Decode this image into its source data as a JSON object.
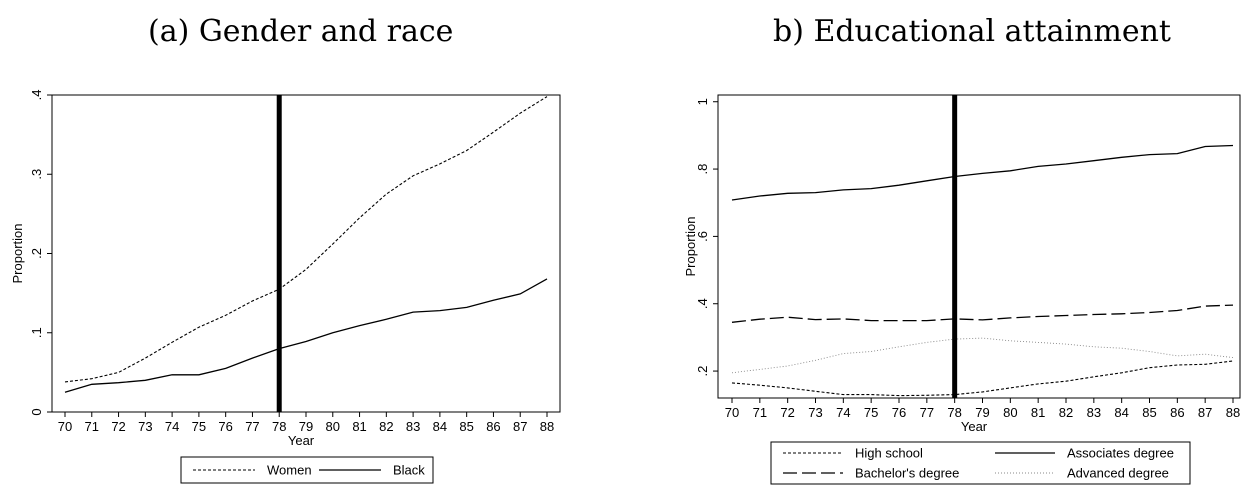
{
  "chart_data": [
    {
      "type": "line",
      "title": "(a) Gender and race",
      "xlabel": "Year",
      "ylabel": "Proportion",
      "x": [
        70,
        71,
        72,
        73,
        74,
        75,
        76,
        77,
        78,
        79,
        80,
        81,
        82,
        83,
        84,
        85,
        86,
        87,
        88
      ],
      "xlim": [
        70,
        88
      ],
      "ylim": [
        0,
        0.4
      ],
      "yticks": [
        "0",
        ".1",
        ".2",
        ".3",
        ".4"
      ],
      "ytick_values": [
        0,
        0.1,
        0.2,
        0.3,
        0.4
      ],
      "vline": 78,
      "grid": false,
      "legend_position": "bottom",
      "series": [
        {
          "name": "Women",
          "style": "dashed",
          "values": [
            0.038,
            0.042,
            0.05,
            0.068,
            0.088,
            0.107,
            0.122,
            0.14,
            0.155,
            0.18,
            0.212,
            0.245,
            0.275,
            0.298,
            0.313,
            0.33,
            0.353,
            0.377,
            0.398
          ]
        },
        {
          "name": "Black",
          "style": "solid",
          "values": [
            0.025,
            0.035,
            0.037,
            0.04,
            0.047,
            0.047,
            0.055,
            0.068,
            0.08,
            0.089,
            0.1,
            0.109,
            0.117,
            0.126,
            0.128,
            0.132,
            0.141,
            0.149,
            0.168
          ]
        }
      ]
    },
    {
      "type": "line",
      "title": "b) Educational attainment",
      "xlabel": "Year",
      "ylabel": "Proportion",
      "x": [
        70,
        71,
        72,
        73,
        74,
        75,
        76,
        77,
        78,
        79,
        80,
        81,
        82,
        83,
        84,
        85,
        86,
        87,
        88
      ],
      "xlim": [
        70,
        88
      ],
      "ylim": [
        0.12,
        1.02
      ],
      "yticks": [
        ".2",
        ".4",
        ".6",
        ".8",
        "1"
      ],
      "ytick_values": [
        0.2,
        0.4,
        0.6,
        0.8,
        1.0
      ],
      "vline": 78,
      "grid": false,
      "legend_position": "bottom",
      "series": [
        {
          "name": "High school",
          "style": "dashed",
          "values": [
            0.165,
            0.158,
            0.15,
            0.14,
            0.13,
            0.13,
            0.127,
            0.128,
            0.13,
            0.138,
            0.15,
            0.162,
            0.17,
            0.183,
            0.195,
            0.21,
            0.218,
            0.22,
            0.23
          ]
        },
        {
          "name": "Associates degree",
          "style": "solid",
          "values": [
            0.708,
            0.72,
            0.728,
            0.73,
            0.738,
            0.742,
            0.752,
            0.765,
            0.778,
            0.787,
            0.795,
            0.808,
            0.815,
            0.825,
            0.835,
            0.843,
            0.846,
            0.867,
            0.87
          ]
        },
        {
          "name": "Bachelor's degree",
          "style": "longdash",
          "values": [
            0.345,
            0.354,
            0.36,
            0.353,
            0.355,
            0.35,
            0.35,
            0.35,
            0.355,
            0.352,
            0.358,
            0.362,
            0.365,
            0.368,
            0.37,
            0.374,
            0.38,
            0.393,
            0.396
          ]
        },
        {
          "name": "Advanced degree",
          "style": "dotted",
          "values": [
            0.195,
            0.205,
            0.215,
            0.232,
            0.252,
            0.258,
            0.272,
            0.285,
            0.295,
            0.298,
            0.29,
            0.285,
            0.28,
            0.272,
            0.268,
            0.258,
            0.245,
            0.25,
            0.24
          ]
        }
      ]
    }
  ]
}
